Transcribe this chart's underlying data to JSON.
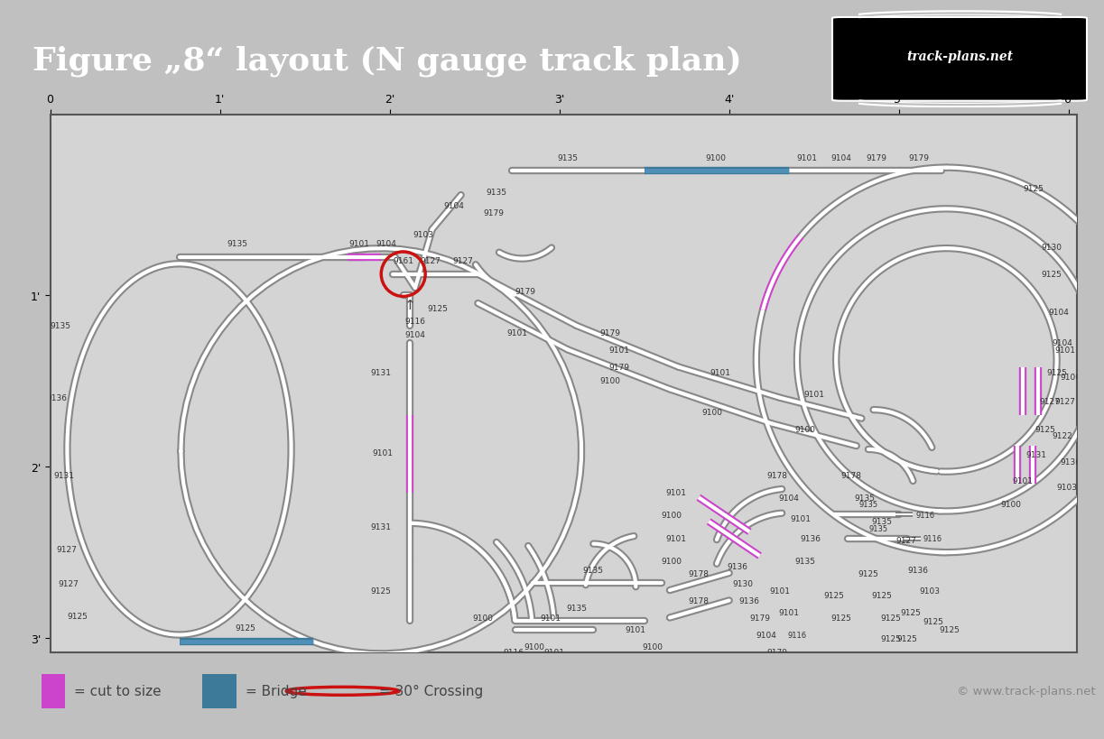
{
  "title": "Figure „8“ layout (N gauge track plan)",
  "header_bg": "#3d6b96",
  "layout_bg": "#d4d4d4",
  "outer_bg": "#c0c0c0",
  "track_grey": "#999999",
  "track_white": "#ffffff",
  "magenta": "#cc44cc",
  "bridge_dark": "#3d7a9a",
  "bridge_light": "#5090b8",
  "crossing_red": "#cc1111",
  "text_color": "#333333",
  "legend_bg": "#d8d8d8",
  "copyright": "© www.track-plans.net",
  "ruler_x": [
    "0",
    "1'",
    "2'",
    "3'",
    "4'",
    "5'",
    "6'"
  ],
  "ruler_y": [
    "1'",
    "2'",
    "3'"
  ]
}
